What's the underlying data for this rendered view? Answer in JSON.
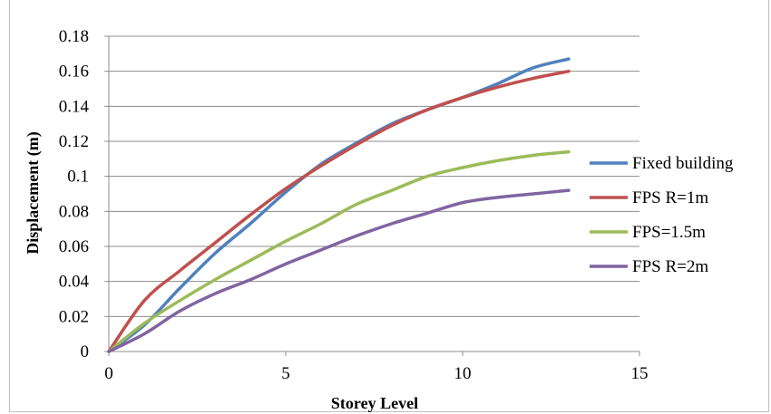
{
  "chart_data": {
    "type": "line",
    "title": "",
    "xlabel": "Storey Level",
    "ylabel": "Displacement (m)",
    "xlim": [
      0,
      15
    ],
    "ylim": [
      0,
      0.18
    ],
    "xticks": [
      "0",
      "5",
      "10",
      "15"
    ],
    "yticks": [
      "0",
      "0.02",
      "0.04",
      "0.06",
      "0.08",
      "0.1",
      "0.12",
      "0.14",
      "0.16",
      "0.18"
    ],
    "grid": "horizontal",
    "legend_position": "right",
    "x": [
      0,
      1,
      2,
      3,
      4,
      5,
      6,
      7,
      8,
      9,
      10,
      11,
      12,
      13
    ],
    "series": [
      {
        "name": "Fixed building",
        "color": "#4f81bd",
        "values": [
          0,
          0.015,
          0.036,
          0.056,
          0.073,
          0.091,
          0.107,
          0.119,
          0.13,
          0.138,
          0.145,
          0.153,
          0.162,
          0.167
        ]
      },
      {
        "name": "FPS R=1m",
        "color": "#c0504d",
        "values": [
          0,
          0.029,
          0.046,
          0.062,
          0.078,
          0.093,
          0.106,
          0.118,
          0.129,
          0.138,
          0.145,
          0.151,
          0.156,
          0.16
        ]
      },
      {
        "name": "FPS=1.5m",
        "color": "#9bbb59",
        "values": [
          0,
          0.016,
          0.029,
          0.041,
          0.052,
          0.063,
          0.073,
          0.084,
          0.092,
          0.1,
          0.105,
          0.109,
          0.112,
          0.114
        ]
      },
      {
        "name": "FPS R=2m",
        "color": "#8064a2",
        "values": [
          0,
          0.01,
          0.023,
          0.033,
          0.041,
          0.05,
          0.058,
          0.066,
          0.073,
          0.079,
          0.085,
          0.088,
          0.09,
          0.092
        ]
      }
    ]
  }
}
